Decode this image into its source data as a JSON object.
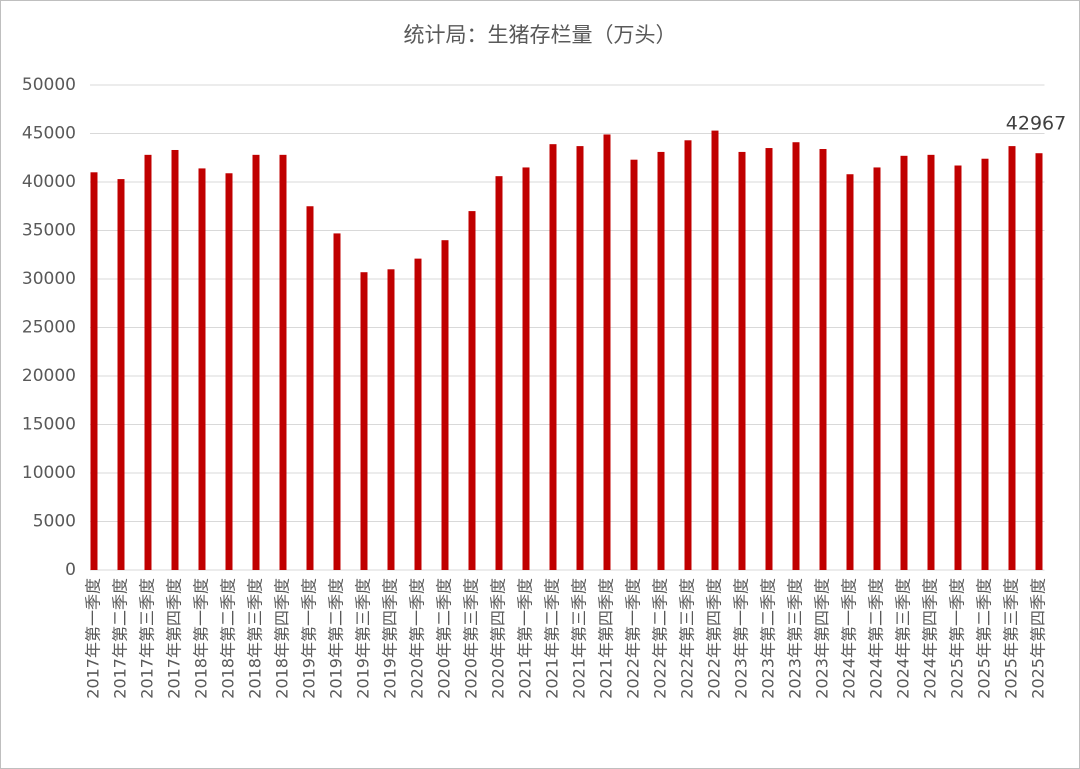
{
  "chart_data": {
    "type": "bar",
    "title": "统计局：生猪存栏量（万头）",
    "categories": [
      "2017年第一季度",
      "2017年第二季度",
      "2017年第三季度",
      "2017年第四季度",
      "2018年第一季度",
      "2018年第二季度",
      "2018年第三季度",
      "2018年第四季度",
      "2019年第一季度",
      "2019年第二季度",
      "2019年第三季度",
      "2019年第四季度",
      "2020年第一季度",
      "2020年第二季度",
      "2020年第三季度",
      "2020年第四季度",
      "2021年第一季度",
      "2021年第二季度",
      "2021年第三季度",
      "2021年第四季度",
      "2022年第一季度",
      "2022年第二季度",
      "2022年第三季度",
      "2022年第四季度",
      "2023年第一季度",
      "2023年第二季度",
      "2023年第三季度",
      "2023年第四季度",
      "2024年第一季度",
      "2024年第二季度",
      "2024年第三季度",
      "2024年第四季度",
      "2025年第一季度",
      "2025年第二季度",
      "2025年第三季度",
      "2025年第四季度"
    ],
    "values": [
      41000,
      40300,
      42800,
      43300,
      41400,
      40900,
      42800,
      42800,
      37500,
      34700,
      30700,
      31000,
      32100,
      34000,
      37000,
      40600,
      41500,
      43900,
      43700,
      44900,
      42300,
      43100,
      44300,
      45300,
      43100,
      43500,
      44100,
      43400,
      40800,
      41500,
      42700,
      42800,
      41700,
      42400,
      43700,
      42967
    ],
    "value_labels": [
      null,
      null,
      null,
      null,
      null,
      null,
      null,
      null,
      null,
      null,
      null,
      null,
      null,
      null,
      null,
      null,
      null,
      null,
      null,
      null,
      null,
      null,
      null,
      null,
      null,
      null,
      null,
      null,
      null,
      null,
      null,
      null,
      null,
      null,
      null,
      "42967"
    ],
    "color": "#c00000",
    "ylim": [
      0,
      50000
    ],
    "yticks": [
      0,
      5000,
      10000,
      15000,
      20000,
      25000,
      30000,
      35000,
      40000,
      45000,
      50000
    ],
    "grid": true
  }
}
